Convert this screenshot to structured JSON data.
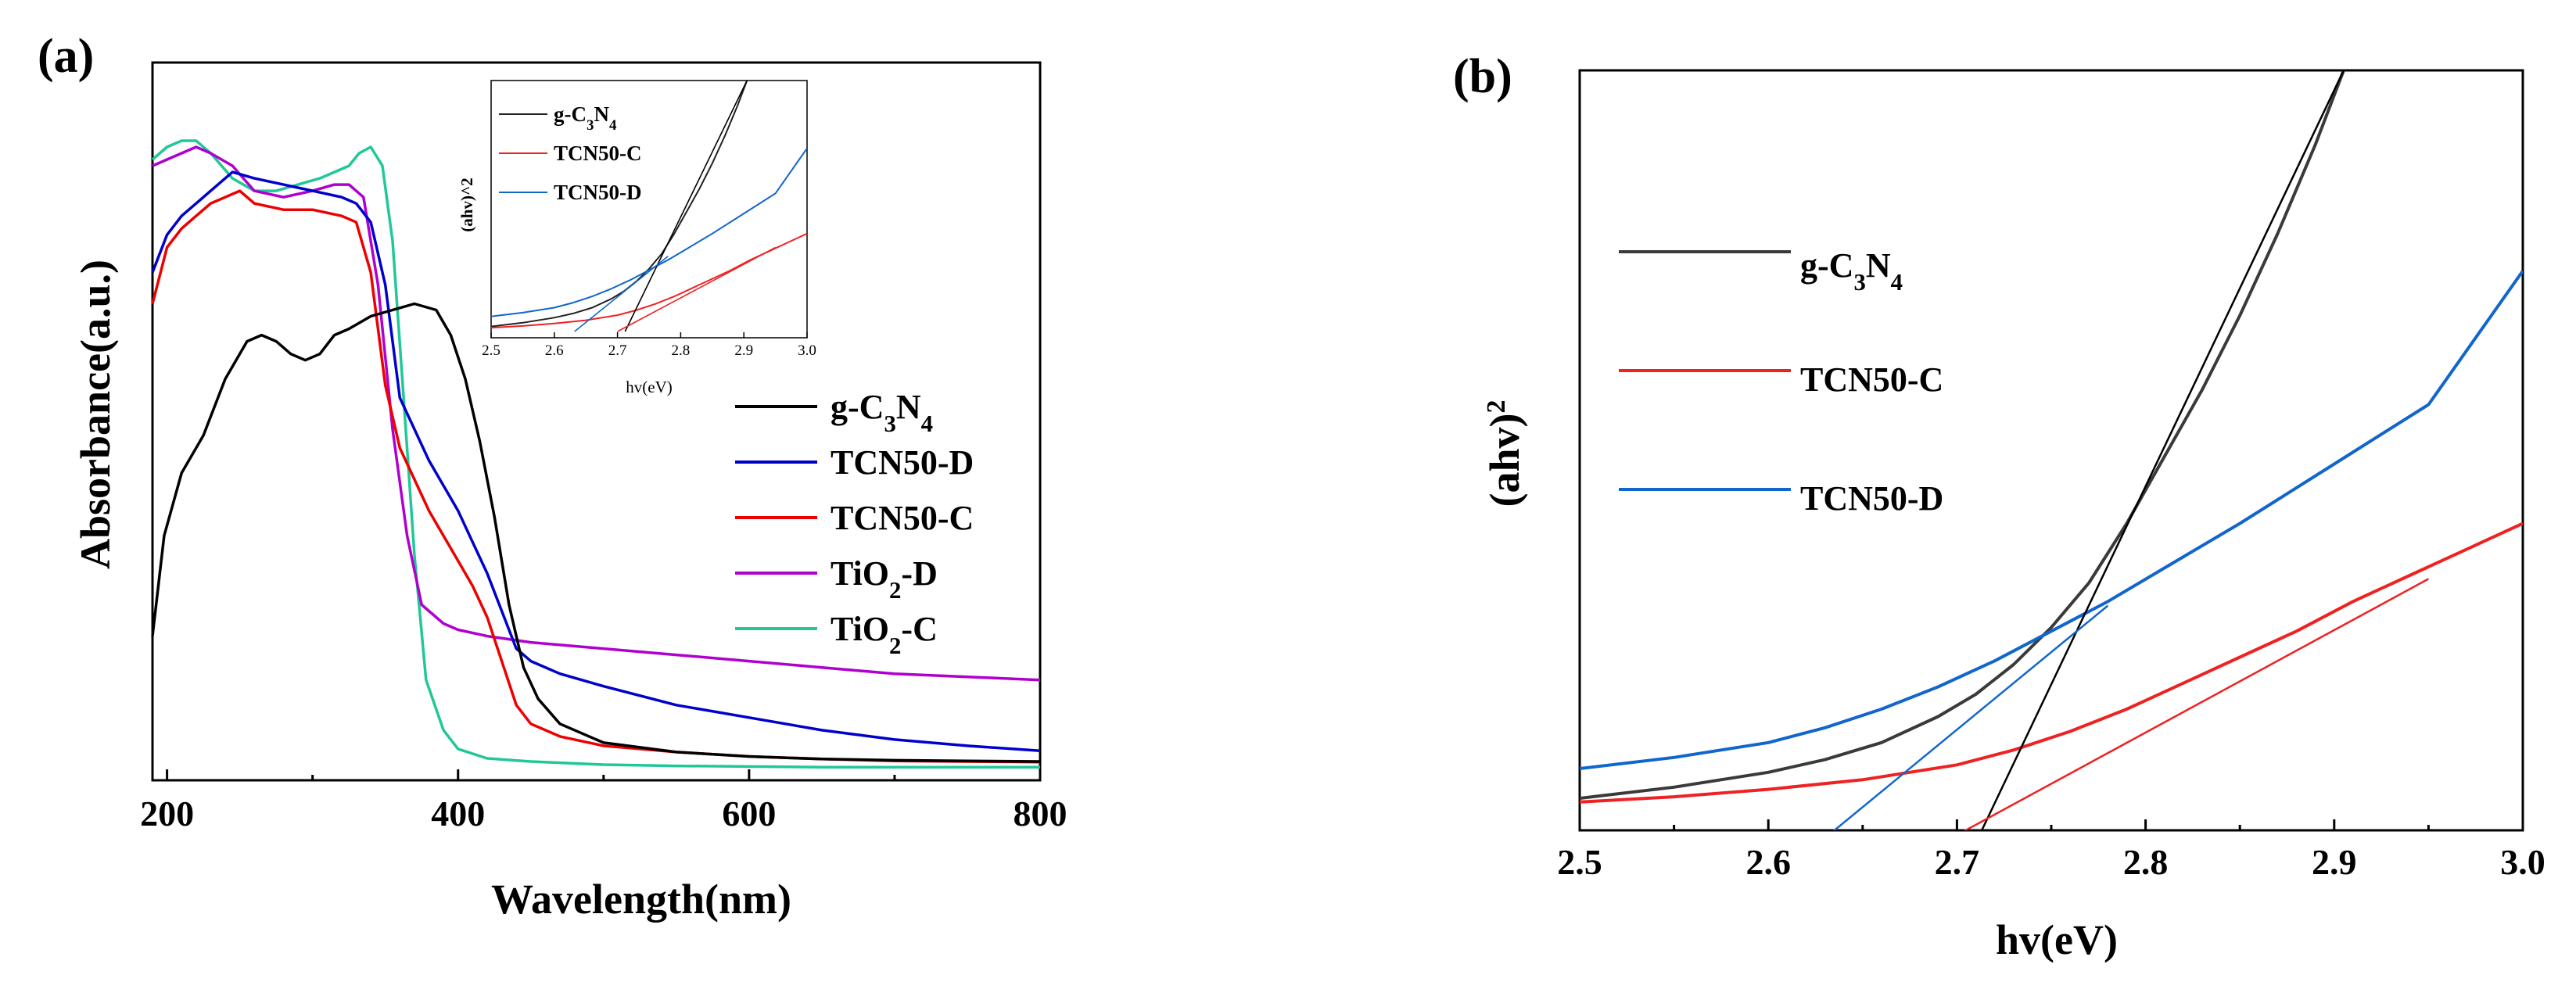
{
  "chart_data": [
    {
      "id": "a",
      "panel_label": "(a)",
      "type": "line",
      "xlabel": "Wavelength(nm)",
      "ylabel": "Absorbance(a.u.)",
      "xlim": [
        190,
        800
      ],
      "ylim": [
        0,
        1
      ],
      "xticks": [
        200,
        400,
        600,
        800
      ],
      "xtick_labels": [
        "200",
        "400",
        "600",
        "800"
      ],
      "grid": false,
      "legend_position": "right",
      "series": [
        {
          "name": "g-C3N4",
          "label_main": "g-C",
          "sub1": "3",
          "mid": "N",
          "sub2": "4",
          "tail": "",
          "color": "#000000",
          "x": [
            190,
            198,
            210,
            225,
            240,
            255,
            265,
            275,
            285,
            295,
            305,
            315,
            325,
            340,
            355,
            370,
            385,
            395,
            405,
            415,
            425,
            435,
            445,
            455,
            470,
            500,
            550,
            600,
            650,
            700,
            750,
            800
          ],
          "y": [
            0.22,
            0.38,
            0.48,
            0.54,
            0.63,
            0.69,
            0.7,
            0.69,
            0.67,
            0.66,
            0.67,
            0.7,
            0.71,
            0.73,
            0.74,
            0.75,
            0.74,
            0.7,
            0.63,
            0.53,
            0.41,
            0.27,
            0.17,
            0.12,
            0.08,
            0.05,
            0.035,
            0.028,
            0.024,
            0.022,
            0.021,
            0.02
          ]
        },
        {
          "name": "TCN50-D",
          "label_main": "TCN50-D",
          "sub1": "",
          "mid": "",
          "sub2": "",
          "tail": "",
          "color": "#0000cc",
          "x": [
            190,
            200,
            210,
            220,
            230,
            245,
            260,
            280,
            300,
            320,
            330,
            340,
            350,
            360,
            370,
            380,
            390,
            400,
            410,
            420,
            430,
            440,
            450,
            470,
            500,
            550,
            600,
            650,
            700,
            750,
            800
          ],
          "y": [
            0.8,
            0.86,
            0.89,
            0.91,
            0.93,
            0.96,
            0.95,
            0.94,
            0.93,
            0.92,
            0.91,
            0.88,
            0.78,
            0.6,
            0.55,
            0.5,
            0.46,
            0.42,
            0.37,
            0.32,
            0.26,
            0.2,
            0.18,
            0.16,
            0.14,
            0.11,
            0.09,
            0.07,
            0.055,
            0.045,
            0.037
          ]
        },
        {
          "name": "TCN50-C",
          "label_main": "TCN50-C",
          "sub1": "",
          "mid": "",
          "sub2": "",
          "tail": "",
          "color": "#ee0000",
          "x": [
            190,
            200,
            210,
            220,
            230,
            240,
            250,
            260,
            280,
            300,
            320,
            330,
            340,
            350,
            360,
            370,
            380,
            390,
            400,
            410,
            420,
            430,
            440,
            450,
            470,
            500,
            550,
            600,
            650,
            700,
            750,
            800
          ],
          "y": [
            0.75,
            0.84,
            0.87,
            0.89,
            0.91,
            0.92,
            0.93,
            0.91,
            0.9,
            0.9,
            0.89,
            0.88,
            0.8,
            0.62,
            0.52,
            0.47,
            0.42,
            0.38,
            0.34,
            0.3,
            0.25,
            0.18,
            0.11,
            0.08,
            0.06,
            0.045,
            0.035,
            0.028,
            0.024,
            0.021,
            0.02,
            0.019
          ]
        },
        {
          "name": "TiO2-D",
          "label_main": "TiO",
          "sub1": "2",
          "mid": "-D",
          "sub2": "",
          "tail": "",
          "color": "#b000d0",
          "x": [
            190,
            200,
            210,
            220,
            230,
            245,
            260,
            280,
            300,
            315,
            325,
            335,
            345,
            355,
            365,
            375,
            390,
            400,
            420,
            450,
            500,
            550,
            600,
            650,
            700,
            750,
            800
          ],
          "y": [
            0.97,
            0.98,
            0.99,
            1.0,
            0.99,
            0.97,
            0.93,
            0.92,
            0.93,
            0.94,
            0.94,
            0.92,
            0.78,
            0.55,
            0.38,
            0.27,
            0.24,
            0.23,
            0.22,
            0.21,
            0.2,
            0.19,
            0.18,
            0.17,
            0.16,
            0.155,
            0.15
          ]
        },
        {
          "name": "TiO2-C",
          "label_main": "TiO",
          "sub1": "2",
          "mid": "-C",
          "sub2": "",
          "tail": "",
          "color": "#20c898",
          "x": [
            190,
            200,
            210,
            220,
            230,
            245,
            260,
            275,
            290,
            305,
            315,
            325,
            332,
            340,
            348,
            355,
            362,
            370,
            378,
            390,
            400,
            420,
            450,
            500,
            550,
            600,
            650,
            700,
            750,
            800
          ],
          "y": [
            0.98,
            1.0,
            1.01,
            1.01,
            0.99,
            0.95,
            0.93,
            0.93,
            0.94,
            0.95,
            0.96,
            0.97,
            0.99,
            1.0,
            0.97,
            0.85,
            0.62,
            0.35,
            0.15,
            0.07,
            0.04,
            0.025,
            0.02,
            0.015,
            0.013,
            0.012,
            0.011,
            0.011,
            0.011,
            0.011
          ]
        }
      ]
    },
    {
      "id": "a-inset",
      "type": "line",
      "xlabel": "hv(eV)",
      "ylabel": "(ahv)^2",
      "xlim": [
        2.5,
        3.0
      ],
      "ylim": [
        0,
        1
      ],
      "xticks": [
        2.5,
        2.6,
        2.7,
        2.8,
        2.9,
        3.0
      ],
      "xtick_labels": [
        "2.5",
        "2.6",
        "2.7",
        "2.8",
        "2.9",
        "3.0"
      ],
      "legend_position": "top-left",
      "series": [
        {
          "name": "g-C3N4",
          "label_main": "g-C",
          "sub1": "3",
          "mid": "N",
          "sub2": "4",
          "tail": "",
          "color": "#222222"
        },
        {
          "name": "TCN50-C",
          "label_main": "TCN50-C",
          "sub1": "",
          "mid": "",
          "sub2": "",
          "tail": "",
          "color": "#ee2222"
        },
        {
          "name": "TCN50-D",
          "label_main": "TCN50-D",
          "sub1": "",
          "mid": "",
          "sub2": "",
          "tail": "",
          "color": "#1166cc"
        }
      ]
    },
    {
      "id": "b",
      "panel_label": "(b)",
      "type": "line",
      "xlabel": "hv(eV)",
      "ylabel_main": "(ahv)",
      "ylabel_sup": "2",
      "xlim": [
        2.5,
        3.0
      ],
      "ylim": [
        0,
        1
      ],
      "xticks": [
        2.5,
        2.6,
        2.7,
        2.8,
        2.9,
        3.0
      ],
      "xtick_labels": [
        "2.5",
        "2.6",
        "2.7",
        "2.8",
        "2.9",
        "3.0"
      ],
      "grid": false,
      "legend_position": "top-left",
      "series": [
        {
          "name": "g-C3N4",
          "label_main": "g-C",
          "sub1": "3",
          "mid": "N",
          "sub2": "4",
          "tail": "",
          "color": "#3a3a3a",
          "x": [
            2.5,
            2.55,
            2.6,
            2.63,
            2.66,
            2.69,
            2.71,
            2.73,
            2.75,
            2.77,
            2.79,
            2.81,
            2.83,
            2.85,
            2.87,
            2.89,
            2.905
          ],
          "y": [
            0.02,
            0.035,
            0.055,
            0.072,
            0.095,
            0.13,
            0.16,
            0.2,
            0.25,
            0.31,
            0.39,
            0.48,
            0.57,
            0.67,
            0.78,
            0.9,
            1.0
          ]
        },
        {
          "name": "TCN50-C",
          "label_main": "TCN50-C",
          "sub1": "",
          "mid": "",
          "sub2": "",
          "tail": "",
          "color": "#ee2222",
          "x": [
            2.5,
            2.55,
            2.6,
            2.65,
            2.7,
            2.73,
            2.76,
            2.79,
            2.82,
            2.85,
            2.88,
            2.91,
            2.94,
            2.97,
            3.0
          ],
          "y": [
            0.015,
            0.022,
            0.032,
            0.045,
            0.065,
            0.085,
            0.11,
            0.14,
            0.175,
            0.21,
            0.245,
            0.285,
            0.32,
            0.355,
            0.39
          ]
        },
        {
          "name": "TCN50-D",
          "label_main": "TCN50-D",
          "sub1": "",
          "mid": "",
          "sub2": "",
          "tail": "",
          "color": "#1166cc",
          "x": [
            2.5,
            2.55,
            2.6,
            2.63,
            2.66,
            2.69,
            2.72,
            2.75,
            2.78,
            2.81,
            2.85,
            2.9,
            2.95,
            3.0
          ],
          "y": [
            0.06,
            0.075,
            0.095,
            0.115,
            0.14,
            0.17,
            0.205,
            0.245,
            0.285,
            0.33,
            0.39,
            0.47,
            0.55,
            0.73
          ]
        }
      ],
      "tangents": [
        {
          "series": "g-C3N4",
          "color": "#000000",
          "x": [
            2.712,
            2.905
          ],
          "y": [
            0.0,
            1.0
          ]
        },
        {
          "series": "TCN50-C",
          "color": "#ee2222",
          "x": [
            2.7,
            2.95
          ],
          "y": [
            0.0,
            0.335
          ]
        },
        {
          "series": "TCN50-D",
          "color": "#1166cc",
          "x": [
            2.632,
            2.78
          ],
          "y": [
            0.0,
            0.3
          ]
        }
      ]
    }
  ]
}
